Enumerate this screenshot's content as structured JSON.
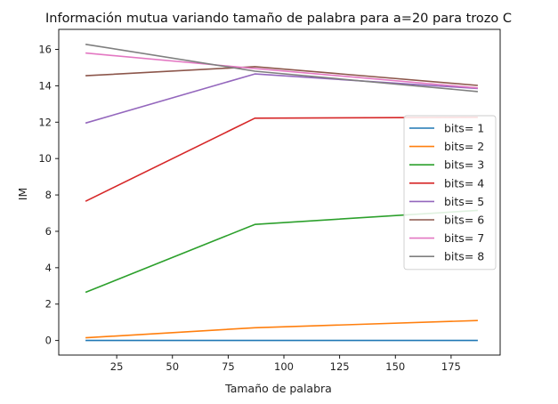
{
  "chart_data": {
    "type": "line",
    "title": "Información mutua variando tamaño de palabra para  a=20 para trozo C",
    "xlabel": "Tamaño de palabra",
    "ylabel": "IM",
    "xlim": [
      -1,
      197
    ],
    "ylim": [
      -0.8,
      17.1
    ],
    "xticks": [
      25,
      50,
      75,
      100,
      125,
      150,
      175
    ],
    "yticks": [
      0,
      2,
      4,
      6,
      8,
      10,
      12,
      14,
      16
    ],
    "x": [
      11,
      87,
      187
    ],
    "grid": false,
    "legend_position": "center-right",
    "series": [
      {
        "name": "bits= 1",
        "color": "#1f77b4",
        "values": [
          0.0,
          0.0,
          0.0
        ]
      },
      {
        "name": "bits= 2",
        "color": "#ff7f0e",
        "values": [
          0.15,
          0.7,
          1.1
        ]
      },
      {
        "name": "bits= 3",
        "color": "#2ca02c",
        "values": [
          2.65,
          6.38,
          7.15
        ]
      },
      {
        "name": "bits= 4",
        "color": "#d62728",
        "values": [
          7.65,
          12.22,
          12.27
        ]
      },
      {
        "name": "bits= 5",
        "color": "#9467bd",
        "values": [
          11.95,
          14.65,
          13.85
        ]
      },
      {
        "name": "bits= 6",
        "color": "#8c564b",
        "values": [
          14.55,
          15.05,
          14.02
        ]
      },
      {
        "name": "bits= 7",
        "color": "#e377c2",
        "values": [
          15.8,
          14.95,
          13.88
        ]
      },
      {
        "name": "bits= 8",
        "color": "#7f7f7f",
        "values": [
          16.28,
          14.8,
          13.68
        ]
      }
    ]
  }
}
